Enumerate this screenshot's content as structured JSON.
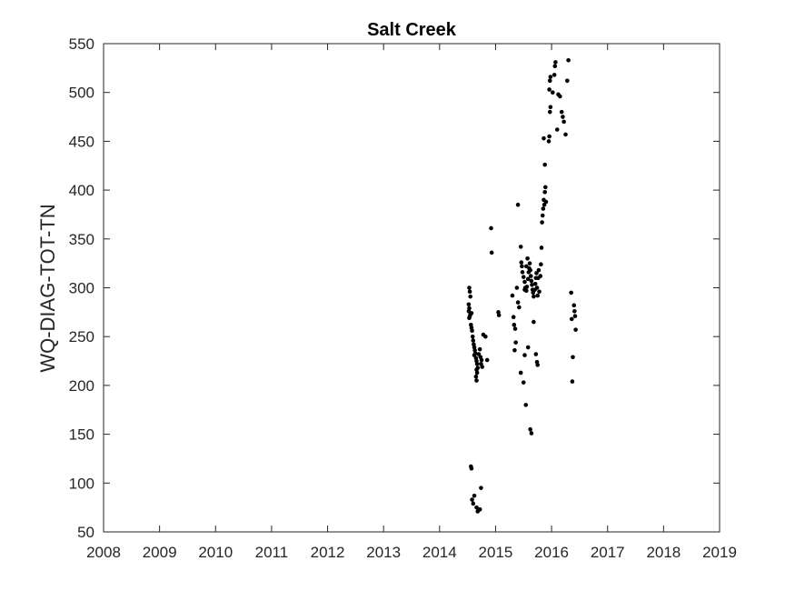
{
  "chart_data": {
    "type": "scatter",
    "title": "Salt Creek",
    "xlabel": "",
    "ylabel": "WQ-DIAG-TOT-TN",
    "xlim": [
      2008,
      2019
    ],
    "ylim": [
      50,
      550
    ],
    "x_ticks": [
      "2008",
      "2009",
      "2010",
      "2011",
      "2012",
      "2013",
      "2014",
      "2015",
      "2016",
      "2017",
      "2018",
      "2019"
    ],
    "y_ticks": [
      "50",
      "100",
      "150",
      "200",
      "250",
      "300",
      "350",
      "400",
      "450",
      "500",
      "550"
    ],
    "grid": false,
    "marker_color": "#000000",
    "series": [
      {
        "points": [
          [
            2014.53,
            300
          ],
          [
            2014.54,
            296
          ],
          [
            2014.55,
            291
          ],
          [
            2014.52,
            283
          ],
          [
            2014.53,
            279
          ],
          [
            2014.52,
            276
          ],
          [
            2014.55,
            273
          ],
          [
            2014.54,
            271
          ],
          [
            2014.57,
            274
          ],
          [
            2014.53,
            269
          ],
          [
            2014.56,
            262
          ],
          [
            2014.57,
            259
          ],
          [
            2014.58,
            256
          ],
          [
            2014.59,
            250
          ],
          [
            2014.6,
            246
          ],
          [
            2014.61,
            242
          ],
          [
            2014.62,
            239
          ],
          [
            2014.63,
            236
          ],
          [
            2014.64,
            233
          ],
          [
            2014.62,
            231
          ],
          [
            2014.65,
            228
          ],
          [
            2014.66,
            225
          ],
          [
            2014.67,
            222
          ],
          [
            2014.68,
            218
          ],
          [
            2014.66,
            216
          ],
          [
            2014.67,
            213
          ],
          [
            2014.65,
            209
          ],
          [
            2014.66,
            205
          ],
          [
            2014.7,
            232
          ],
          [
            2014.72,
            237
          ],
          [
            2014.73,
            229
          ],
          [
            2014.75,
            226
          ],
          [
            2014.74,
            222
          ],
          [
            2014.76,
            219
          ],
          [
            2014.78,
            252
          ],
          [
            2014.82,
            250
          ],
          [
            2014.85,
            226
          ],
          [
            2014.56,
            117
          ],
          [
            2014.57,
            115
          ],
          [
            2014.58,
            83
          ],
          [
            2014.6,
            79
          ],
          [
            2014.62,
            87
          ],
          [
            2014.66,
            75
          ],
          [
            2014.7,
            73
          ],
          [
            2014.72,
            73
          ],
          [
            2014.68,
            71
          ],
          [
            2014.74,
            95
          ],
          [
            2014.92,
            361
          ],
          [
            2014.93,
            336
          ],
          [
            2015.05,
            275
          ],
          [
            2015.06,
            272
          ],
          [
            2015.3,
            292
          ],
          [
            2015.32,
            270
          ],
          [
            2015.33,
            262
          ],
          [
            2015.35,
            258
          ],
          [
            2015.36,
            244
          ],
          [
            2015.34,
            236
          ],
          [
            2015.38,
            300
          ],
          [
            2015.4,
            285
          ],
          [
            2015.42,
            280
          ],
          [
            2015.45,
            342
          ],
          [
            2015.46,
            326
          ],
          [
            2015.47,
            322
          ],
          [
            2015.48,
            316
          ],
          [
            2015.5,
            311
          ],
          [
            2015.52,
            306
          ],
          [
            2015.53,
            300
          ],
          [
            2015.55,
            297
          ],
          [
            2015.56,
            301
          ],
          [
            2015.58,
            309
          ],
          [
            2015.59,
            316
          ],
          [
            2015.6,
            320
          ],
          [
            2015.61,
            325
          ],
          [
            2015.62,
            318
          ],
          [
            2015.63,
            312
          ],
          [
            2015.64,
            307
          ],
          [
            2015.65,
            303
          ],
          [
            2015.66,
            298
          ],
          [
            2015.67,
            295
          ],
          [
            2015.68,
            291
          ],
          [
            2015.7,
            298
          ],
          [
            2015.71,
            304
          ],
          [
            2015.72,
            310
          ],
          [
            2015.73,
            315
          ],
          [
            2015.74,
            300
          ],
          [
            2015.75,
            292
          ],
          [
            2015.76,
            310
          ],
          [
            2015.77,
            318
          ],
          [
            2015.78,
            296
          ],
          [
            2015.8,
            312
          ],
          [
            2015.81,
            324
          ],
          [
            2015.82,
            341
          ],
          [
            2015.55,
            322
          ],
          [
            2015.57,
            330
          ],
          [
            2015.52,
            298
          ],
          [
            2015.4,
            385
          ],
          [
            2015.45,
            213
          ],
          [
            2015.5,
            203
          ],
          [
            2015.52,
            231
          ],
          [
            2015.54,
            180
          ],
          [
            2015.58,
            239
          ],
          [
            2015.62,
            155
          ],
          [
            2015.64,
            151
          ],
          [
            2015.68,
            265
          ],
          [
            2015.72,
            232
          ],
          [
            2015.74,
            224
          ],
          [
            2015.75,
            221
          ],
          [
            2015.83,
            367
          ],
          [
            2015.84,
            374
          ],
          [
            2015.85,
            381
          ],
          [
            2015.86,
            390
          ],
          [
            2015.87,
            385
          ],
          [
            2015.88,
            398
          ],
          [
            2015.89,
            403
          ],
          [
            2015.9,
            388
          ],
          [
            2015.86,
            453
          ],
          [
            2015.88,
            426
          ],
          [
            2015.95,
            450
          ],
          [
            2015.96,
            455
          ],
          [
            2015.97,
            480
          ],
          [
            2015.98,
            485
          ],
          [
            2015.96,
            503
          ],
          [
            2015.97,
            512
          ],
          [
            2015.98,
            516
          ],
          [
            2016.02,
            500
          ],
          [
            2016.05,
            518
          ],
          [
            2016.06,
            527
          ],
          [
            2016.07,
            531
          ],
          [
            2016.1,
            462
          ],
          [
            2016.12,
            498
          ],
          [
            2016.15,
            496
          ],
          [
            2016.18,
            480
          ],
          [
            2016.2,
            475
          ],
          [
            2016.22,
            470
          ],
          [
            2016.25,
            457
          ],
          [
            2016.28,
            512
          ],
          [
            2016.3,
            533
          ],
          [
            2016.35,
            295
          ],
          [
            2016.36,
            268
          ],
          [
            2016.38,
            229
          ],
          [
            2016.37,
            204
          ],
          [
            2016.4,
            282
          ],
          [
            2016.41,
            276
          ],
          [
            2016.42,
            271
          ],
          [
            2016.43,
            257
          ]
        ]
      }
    ]
  }
}
